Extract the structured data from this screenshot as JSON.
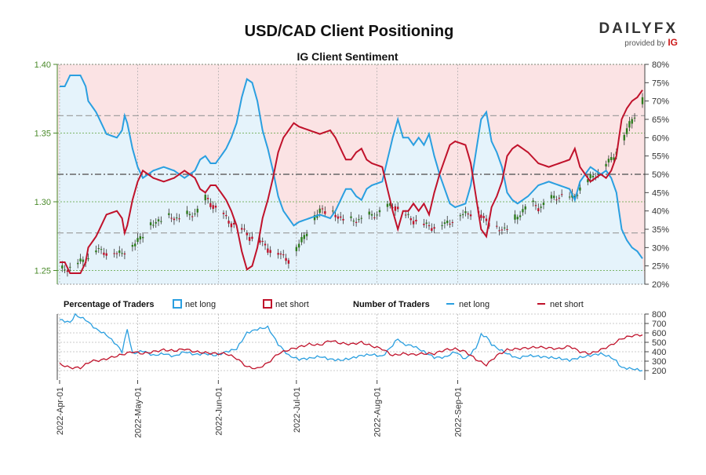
{
  "header": {
    "title": "USD/CAD Client Positioning",
    "subtitle": "IG Client Sentiment",
    "logo_text": "DAILYFX",
    "logo_sub": "provided by",
    "logo_brand": "IG"
  },
  "colors": {
    "long": "#2a9fe0",
    "short": "#c0122b",
    "long_fill": "#e5f3fb",
    "short_fill": "#fbe3e4",
    "candle_up": "#2e7d1e",
    "candle_down": "#c0122b",
    "axis_left": "#4a8a2a"
  },
  "legend": {
    "pct_heading": "Percentage of Traders",
    "pct_long": "net long",
    "pct_short": "net short",
    "num_heading": "Number of Traders",
    "num_long": "net long",
    "num_short": "net short"
  },
  "chart_data": [
    {
      "type": "candlestick",
      "title": "IG Client Sentiment",
      "ylim": [
        1.24,
        1.4
      ],
      "y_ticks": [
        "1.25",
        "1.30",
        "1.35",
        "1.40"
      ],
      "y2lim": [
        20,
        80
      ],
      "y2_ticks": [
        "20%",
        "25%",
        "30%",
        "35%",
        "40%",
        "45%",
        "50%",
        "55%",
        "60%",
        "65%",
        "70%",
        "75%",
        "80%"
      ],
      "reference_lines_pct": [
        34,
        50,
        66
      ],
      "x_ticks": [
        "2022-Apr-01",
        "2022-May-01",
        "2022-Jun-01",
        "2022-Jul-01",
        "2022-Aug-01",
        "2022-Sep-01"
      ],
      "long_pct_keys": [
        [
          0,
          74
        ],
        [
          2,
          74
        ],
        [
          4,
          77
        ],
        [
          8,
          77
        ],
        [
          10,
          74
        ],
        [
          11,
          70
        ],
        [
          14,
          67
        ],
        [
          16,
          64
        ],
        [
          18,
          61
        ],
        [
          22,
          60
        ],
        [
          24,
          62
        ],
        [
          25,
          66
        ],
        [
          26,
          64
        ],
        [
          28,
          57
        ],
        [
          30,
          52
        ],
        [
          32,
          49
        ],
        [
          36,
          51
        ],
        [
          40,
          52
        ],
        [
          44,
          51
        ],
        [
          48,
          49
        ],
        [
          52,
          51
        ],
        [
          54,
          54
        ],
        [
          56,
          55
        ],
        [
          58,
          53
        ],
        [
          60,
          53
        ],
        [
          62,
          55
        ],
        [
          64,
          57
        ],
        [
          66,
          60
        ],
        [
          68,
          64
        ],
        [
          70,
          71
        ],
        [
          72,
          76
        ],
        [
          74,
          75
        ],
        [
          76,
          70
        ],
        [
          78,
          62
        ],
        [
          80,
          57
        ],
        [
          82,
          51
        ],
        [
          84,
          44
        ],
        [
          86,
          40
        ],
        [
          88,
          38
        ],
        [
          90,
          36
        ],
        [
          92,
          37
        ],
        [
          96,
          38
        ],
        [
          100,
          39
        ],
        [
          104,
          38
        ],
        [
          106,
          40
        ],
        [
          108,
          43
        ],
        [
          110,
          46
        ],
        [
          112,
          46
        ],
        [
          114,
          44
        ],
        [
          116,
          43
        ],
        [
          118,
          46
        ],
        [
          120,
          47
        ],
        [
          124,
          48
        ],
        [
          126,
          54
        ],
        [
          128,
          60
        ],
        [
          130,
          65
        ],
        [
          132,
          60
        ],
        [
          134,
          60
        ],
        [
          136,
          58
        ],
        [
          138,
          60
        ],
        [
          140,
          58
        ],
        [
          142,
          61
        ],
        [
          144,
          55
        ],
        [
          146,
          50
        ],
        [
          148,
          46
        ],
        [
          150,
          42
        ],
        [
          152,
          41
        ],
        [
          156,
          42
        ],
        [
          158,
          47
        ],
        [
          160,
          56
        ],
        [
          162,
          65
        ],
        [
          164,
          67
        ],
        [
          166,
          59
        ],
        [
          168,
          56
        ],
        [
          170,
          52
        ],
        [
          172,
          45
        ],
        [
          174,
          43
        ],
        [
          176,
          42
        ],
        [
          178,
          43
        ],
        [
          180,
          44
        ],
        [
          184,
          47
        ],
        [
          188,
          48
        ],
        [
          192,
          47
        ],
        [
          196,
          46
        ],
        [
          198,
          43
        ],
        [
          200,
          48
        ],
        [
          204,
          52
        ],
        [
          206,
          51
        ],
        [
          208,
          50
        ],
        [
          210,
          51
        ],
        [
          212,
          49
        ],
        [
          214,
          45
        ],
        [
          216,
          35
        ],
        [
          218,
          32
        ],
        [
          220,
          30
        ],
        [
          222,
          29
        ],
        [
          224,
          27
        ]
      ],
      "short_pct_keys": [
        [
          0,
          26
        ],
        [
          2,
          26
        ],
        [
          4,
          23
        ],
        [
          8,
          23
        ],
        [
          10,
          26
        ],
        [
          11,
          30
        ],
        [
          14,
          33
        ],
        [
          16,
          36
        ],
        [
          18,
          39
        ],
        [
          22,
          40
        ],
        [
          24,
          38
        ],
        [
          25,
          34
        ],
        [
          26,
          36
        ],
        [
          28,
          43
        ],
        [
          30,
          48
        ],
        [
          32,
          51
        ],
        [
          36,
          49
        ],
        [
          40,
          48
        ],
        [
          44,
          49
        ],
        [
          48,
          51
        ],
        [
          52,
          49
        ],
        [
          54,
          46
        ],
        [
          56,
          45
        ],
        [
          58,
          47
        ],
        [
          60,
          47
        ],
        [
          62,
          45
        ],
        [
          64,
          43
        ],
        [
          66,
          40
        ],
        [
          68,
          36
        ],
        [
          70,
          29
        ],
        [
          72,
          24
        ],
        [
          74,
          25
        ],
        [
          76,
          30
        ],
        [
          78,
          38
        ],
        [
          80,
          43
        ],
        [
          82,
          49
        ],
        [
          84,
          56
        ],
        [
          86,
          60
        ],
        [
          88,
          62
        ],
        [
          90,
          64
        ],
        [
          92,
          63
        ],
        [
          96,
          62
        ],
        [
          100,
          61
        ],
        [
          104,
          62
        ],
        [
          106,
          60
        ],
        [
          108,
          57
        ],
        [
          110,
          54
        ],
        [
          112,
          54
        ],
        [
          114,
          56
        ],
        [
          116,
          57
        ],
        [
          118,
          54
        ],
        [
          120,
          53
        ],
        [
          124,
          52
        ],
        [
          126,
          46
        ],
        [
          128,
          40
        ],
        [
          130,
          35
        ],
        [
          132,
          40
        ],
        [
          134,
          40
        ],
        [
          136,
          42
        ],
        [
          138,
          40
        ],
        [
          140,
          42
        ],
        [
          142,
          39
        ],
        [
          144,
          45
        ],
        [
          146,
          50
        ],
        [
          148,
          54
        ],
        [
          150,
          58
        ],
        [
          152,
          59
        ],
        [
          156,
          58
        ],
        [
          158,
          53
        ],
        [
          160,
          44
        ],
        [
          162,
          35
        ],
        [
          164,
          33
        ],
        [
          166,
          41
        ],
        [
          168,
          44
        ],
        [
          170,
          48
        ],
        [
          172,
          55
        ],
        [
          174,
          57
        ],
        [
          176,
          58
        ],
        [
          178,
          57
        ],
        [
          180,
          56
        ],
        [
          184,
          53
        ],
        [
          188,
          52
        ],
        [
          192,
          53
        ],
        [
          196,
          54
        ],
        [
          198,
          57
        ],
        [
          200,
          52
        ],
        [
          204,
          48
        ],
        [
          206,
          49
        ],
        [
          208,
          50
        ],
        [
          210,
          49
        ],
        [
          212,
          51
        ],
        [
          214,
          55
        ],
        [
          216,
          65
        ],
        [
          218,
          68
        ],
        [
          220,
          70
        ],
        [
          222,
          71
        ],
        [
          224,
          73
        ]
      ],
      "price_keys": [
        [
          0,
          1.25
        ],
        [
          8,
          1.256
        ],
        [
          14,
          1.265
        ],
        [
          22,
          1.262
        ],
        [
          28,
          1.268
        ],
        [
          34,
          1.282
        ],
        [
          40,
          1.289
        ],
        [
          46,
          1.288
        ],
        [
          52,
          1.292
        ],
        [
          56,
          1.302
        ],
        [
          60,
          1.295
        ],
        [
          64,
          1.287
        ],
        [
          68,
          1.282
        ],
        [
          72,
          1.276
        ],
        [
          76,
          1.272
        ],
        [
          80,
          1.266
        ],
        [
          84,
          1.262
        ],
        [
          88,
          1.258
        ],
        [
          92,
          1.27
        ],
        [
          96,
          1.283
        ],
        [
          100,
          1.295
        ],
        [
          104,
          1.292
        ],
        [
          108,
          1.288
        ],
        [
          112,
          1.286
        ],
        [
          116,
          1.288
        ],
        [
          120,
          1.29
        ],
        [
          124,
          1.294
        ],
        [
          128,
          1.298
        ],
        [
          132,
          1.29
        ],
        [
          136,
          1.287
        ],
        [
          140,
          1.283
        ],
        [
          144,
          1.282
        ],
        [
          148,
          1.284
        ],
        [
          152,
          1.289
        ],
        [
          156,
          1.292
        ],
        [
          160,
          1.293
        ],
        [
          164,
          1.286
        ],
        [
          168,
          1.28
        ],
        [
          172,
          1.281
        ],
        [
          176,
          1.29
        ],
        [
          180,
          1.299
        ],
        [
          184,
          1.296
        ],
        [
          188,
          1.301
        ],
        [
          192,
          1.305
        ],
        [
          196,
          1.302
        ],
        [
          200,
          1.31
        ],
        [
          204,
          1.318
        ],
        [
          208,
          1.324
        ],
        [
          212,
          1.332
        ],
        [
          216,
          1.345
        ],
        [
          220,
          1.362
        ],
        [
          222,
          1.366
        ],
        [
          224,
          1.376
        ]
      ]
    },
    {
      "type": "line",
      "title": "Number of Traders",
      "ylim": [
        100,
        800
      ],
      "y_ticks": [
        "200",
        "300",
        "400",
        "500",
        "600",
        "700",
        "800"
      ],
      "long_num_keys": [
        [
          0,
          740
        ],
        [
          4,
          710
        ],
        [
          6,
          790
        ],
        [
          10,
          740
        ],
        [
          14,
          640
        ],
        [
          18,
          580
        ],
        [
          22,
          470
        ],
        [
          24,
          400
        ],
        [
          26,
          640
        ],
        [
          28,
          380
        ],
        [
          32,
          410
        ],
        [
          36,
          360
        ],
        [
          40,
          380
        ],
        [
          44,
          350
        ],
        [
          48,
          400
        ],
        [
          52,
          370
        ],
        [
          56,
          380
        ],
        [
          60,
          360
        ],
        [
          64,
          400
        ],
        [
          68,
          430
        ],
        [
          72,
          600
        ],
        [
          76,
          640
        ],
        [
          80,
          660
        ],
        [
          84,
          480
        ],
        [
          88,
          360
        ],
        [
          92,
          320
        ],
        [
          96,
          330
        ],
        [
          100,
          350
        ],
        [
          104,
          320
        ],
        [
          108,
          310
        ],
        [
          112,
          330
        ],
        [
          116,
          360
        ],
        [
          120,
          370
        ],
        [
          124,
          350
        ],
        [
          128,
          470
        ],
        [
          130,
          540
        ],
        [
          132,
          480
        ],
        [
          136,
          460
        ],
        [
          140,
          400
        ],
        [
          144,
          340
        ],
        [
          148,
          340
        ],
        [
          152,
          400
        ],
        [
          156,
          320
        ],
        [
          160,
          440
        ],
        [
          162,
          580
        ],
        [
          164,
          560
        ],
        [
          166,
          480
        ],
        [
          168,
          440
        ],
        [
          172,
          380
        ],
        [
          176,
          330
        ],
        [
          180,
          360
        ],
        [
          184,
          350
        ],
        [
          188,
          340
        ],
        [
          192,
          330
        ],
        [
          196,
          310
        ],
        [
          200,
          340
        ],
        [
          204,
          360
        ],
        [
          208,
          380
        ],
        [
          212,
          340
        ],
        [
          214,
          300
        ],
        [
          216,
          230
        ],
        [
          220,
          220
        ],
        [
          224,
          200
        ]
      ],
      "short_num_keys": [
        [
          0,
          270
        ],
        [
          4,
          230
        ],
        [
          8,
          230
        ],
        [
          12,
          300
        ],
        [
          16,
          310
        ],
        [
          20,
          340
        ],
        [
          24,
          370
        ],
        [
          28,
          400
        ],
        [
          32,
          380
        ],
        [
          36,
          400
        ],
        [
          40,
          420
        ],
        [
          44,
          410
        ],
        [
          48,
          430
        ],
        [
          52,
          400
        ],
        [
          56,
          390
        ],
        [
          60,
          380
        ],
        [
          64,
          380
        ],
        [
          68,
          330
        ],
        [
          72,
          240
        ],
        [
          76,
          220
        ],
        [
          80,
          280
        ],
        [
          84,
          380
        ],
        [
          88,
          420
        ],
        [
          92,
          450
        ],
        [
          96,
          480
        ],
        [
          100,
          470
        ],
        [
          104,
          520
        ],
        [
          108,
          490
        ],
        [
          112,
          480
        ],
        [
          116,
          500
        ],
        [
          120,
          460
        ],
        [
          124,
          430
        ],
        [
          128,
          360
        ],
        [
          132,
          380
        ],
        [
          136,
          370
        ],
        [
          140,
          380
        ],
        [
          144,
          380
        ],
        [
          148,
          420
        ],
        [
          152,
          430
        ],
        [
          156,
          400
        ],
        [
          160,
          320
        ],
        [
          164,
          260
        ],
        [
          168,
          360
        ],
        [
          172,
          420
        ],
        [
          176,
          430
        ],
        [
          180,
          440
        ],
        [
          184,
          450
        ],
        [
          188,
          440
        ],
        [
          192,
          430
        ],
        [
          196,
          460
        ],
        [
          200,
          400
        ],
        [
          204,
          380
        ],
        [
          208,
          420
        ],
        [
          212,
          470
        ],
        [
          216,
          540
        ],
        [
          220,
          570
        ],
        [
          224,
          580
        ]
      ]
    }
  ]
}
